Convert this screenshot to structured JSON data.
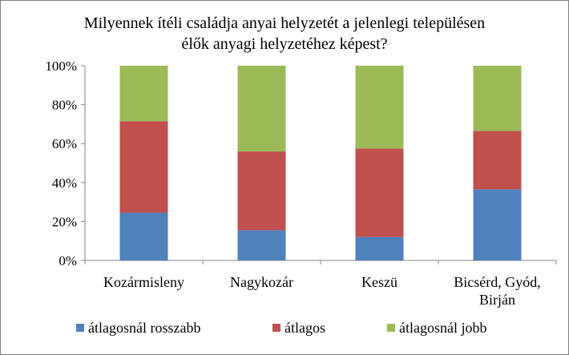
{
  "chart_data": {
    "type": "bar",
    "stacked": true,
    "title_lines": [
      "Milyennek ítéli családja anyai helyzetét a jelenlegi településen",
      "élők anyagi helyzetéhez képest?"
    ],
    "categories": [
      [
        "Kozármisleny"
      ],
      [
        "Nagykozár"
      ],
      [
        "Keszü"
      ],
      [
        "Bicsérd, Gyód,",
        "Birján"
      ]
    ],
    "series": [
      {
        "name": "átlagosnál rosszabb",
        "color": "#4F81BD",
        "values": [
          24.5,
          15.5,
          12,
          36.5
        ]
      },
      {
        "name": "átlagos",
        "color": "#C0504D",
        "values": [
          47,
          40.5,
          45.5,
          30
        ]
      },
      {
        "name": "átlagosnál jobb",
        "color": "#9BBB59",
        "values": [
          28.5,
          44,
          42.5,
          33.5
        ]
      }
    ],
    "ylim": [
      0,
      100
    ],
    "yticks": [
      "0%",
      "20%",
      "40%",
      "60%",
      "80%",
      "100%"
    ],
    "grid": false,
    "legend_position": "bottom"
  }
}
